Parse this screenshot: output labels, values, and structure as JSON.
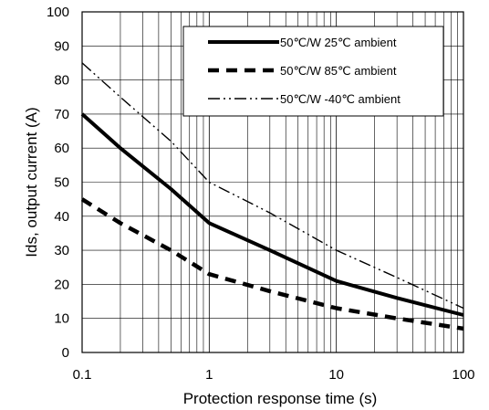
{
  "chart_data": {
    "type": "line",
    "xlabel": "Protection response time (s)",
    "ylabel": "Ids, output current (A)",
    "xscale": "log",
    "xlim": [
      0.1,
      100
    ],
    "ylim": [
      0,
      100
    ],
    "grid": true,
    "legend_position": "top-right",
    "x_ticks": [
      {
        "value": 0.1,
        "label": "0.1"
      },
      {
        "value": 1,
        "label": "1"
      },
      {
        "value": 10,
        "label": "10"
      },
      {
        "value": 100,
        "label": "100"
      }
    ],
    "y_ticks": [
      {
        "value": 0,
        "label": "0"
      },
      {
        "value": 10,
        "label": "10"
      },
      {
        "value": 20,
        "label": "20"
      },
      {
        "value": 30,
        "label": "30"
      },
      {
        "value": 40,
        "label": "40"
      },
      {
        "value": 50,
        "label": "50"
      },
      {
        "value": 60,
        "label": "60"
      },
      {
        "value": 70,
        "label": "70"
      },
      {
        "value": 80,
        "label": "80"
      },
      {
        "value": 90,
        "label": "90"
      },
      {
        "value": 100,
        "label": "100"
      }
    ],
    "series": [
      {
        "name": "50℃/W 25℃ ambient",
        "style": "solid",
        "color": "#000000",
        "x": [
          0.1,
          0.2,
          0.5,
          1,
          3,
          10,
          30,
          100
        ],
        "y": [
          70,
          60,
          48,
          38,
          30,
          21,
          16,
          11
        ]
      },
      {
        "name": "50℃/W 85℃ ambient",
        "style": "dashed",
        "color": "#000000",
        "x": [
          0.1,
          0.2,
          0.5,
          1,
          3,
          10,
          30,
          100
        ],
        "y": [
          45,
          38,
          30,
          23,
          18,
          13,
          10,
          7
        ]
      },
      {
        "name": "50℃/W -40℃ ambient",
        "style": "dash-dot",
        "color": "#000000",
        "x": [
          0.1,
          0.2,
          0.5,
          1,
          3,
          10,
          30,
          100
        ],
        "y": [
          85,
          75,
          62,
          50,
          41,
          30,
          22,
          13
        ]
      }
    ]
  }
}
